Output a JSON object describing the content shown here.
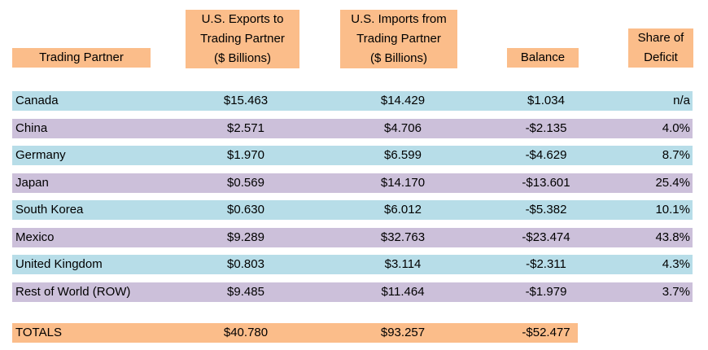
{
  "colors": {
    "header_bg": "#fbbd8a",
    "row_blue": "#b7dde8",
    "row_purple": "#ccc0da",
    "totals_bg": "#fbbd8a"
  },
  "header": {
    "partner": "Trading Partner",
    "exports": [
      "U.S. Exports to",
      "Trading Partner",
      "($ Billions)"
    ],
    "imports": [
      "U.S. Imports from",
      "Trading Partner",
      "($ Billions)"
    ],
    "balance": "Balance",
    "share": [
      "Share of",
      "Deficit"
    ]
  },
  "rows": [
    {
      "partner": "Canada",
      "exports": "$15.463",
      "imports": "$14.429",
      "balance": "$1.034",
      "share": "n/a",
      "color": "#b7dde8"
    },
    {
      "partner": "China",
      "exports": "$2.571",
      "imports": "$4.706",
      "balance": "-$2.135",
      "share": "4.0%",
      "color": "#ccc0da"
    },
    {
      "partner": "Germany",
      "exports": "$1.970",
      "imports": "$6.599",
      "balance": "-$4.629",
      "share": "8.7%",
      "color": "#b7dde8"
    },
    {
      "partner": "Japan",
      "exports": "$0.569",
      "imports": "$14.170",
      "balance": "-$13.601",
      "share": "25.4%",
      "color": "#ccc0da"
    },
    {
      "partner": "South Korea",
      "exports": "$0.630",
      "imports": "$6.012",
      "balance": "-$5.382",
      "share": "10.1%",
      "color": "#b7dde8"
    },
    {
      "partner": "Mexico",
      "exports": "$9.289",
      "imports": "$32.763",
      "balance": "-$23.474",
      "share": "43.8%",
      "color": "#ccc0da"
    },
    {
      "partner": "United Kingdom",
      "exports": "$0.803",
      "imports": "$3.114",
      "balance": "-$2.311",
      "share": "4.3%",
      "color": "#b7dde8"
    },
    {
      "partner": "Rest of World (ROW)",
      "exports": "$9.485",
      "imports": "$11.464",
      "balance": "-$1.979",
      "share": "3.7%",
      "color": "#ccc0da"
    }
  ],
  "totals": {
    "label": "TOTALS",
    "exports": "$40.780",
    "imports": "$93.257",
    "balance": "-$52.477"
  }
}
